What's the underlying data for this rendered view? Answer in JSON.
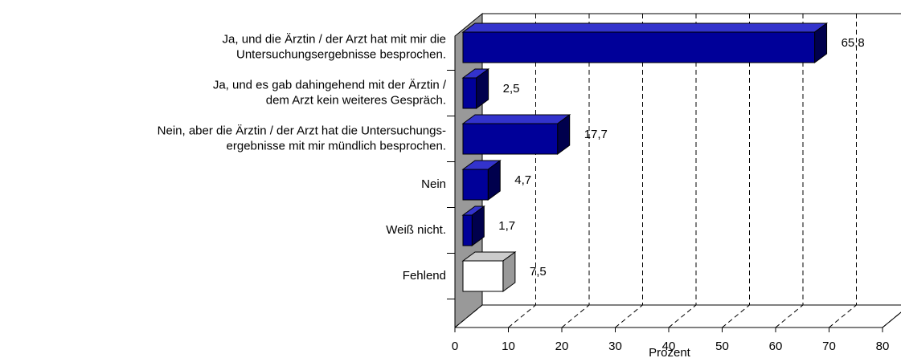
{
  "chart_data": {
    "type": "bar3d-horizontal",
    "categories": [
      [
        "Ja, und die Ärztin / der Arzt hat mit mir die",
        "Untersuchungsergebnisse besprochen."
      ],
      [
        "Ja, und es gab dahingehend mit der Ärztin /",
        "dem Arzt kein weiteres Gespräch."
      ],
      [
        "Nein, aber die Ärztin / der Arzt hat die Untersuchungs-",
        "ergebnisse mit mir mündlich besprochen."
      ],
      [
        "Nein"
      ],
      [
        "Weiß nicht."
      ],
      [
        "Fehlend"
      ]
    ],
    "values": [
      65.8,
      2.5,
      17.7,
      4.7,
      1.7,
      7.5
    ],
    "value_labels": [
      "65,8",
      "2,5",
      "17,7",
      "4,7",
      "1,7",
      "7,5"
    ],
    "colors": [
      "#000099",
      "#000099",
      "#000099",
      "#000099",
      "#000099",
      "#ffffff"
    ],
    "xlabel": "Prozent",
    "xlim": [
      0,
      80
    ],
    "xticks": [
      0,
      10,
      20,
      30,
      40,
      50,
      60,
      70,
      80
    ],
    "grid": true
  }
}
